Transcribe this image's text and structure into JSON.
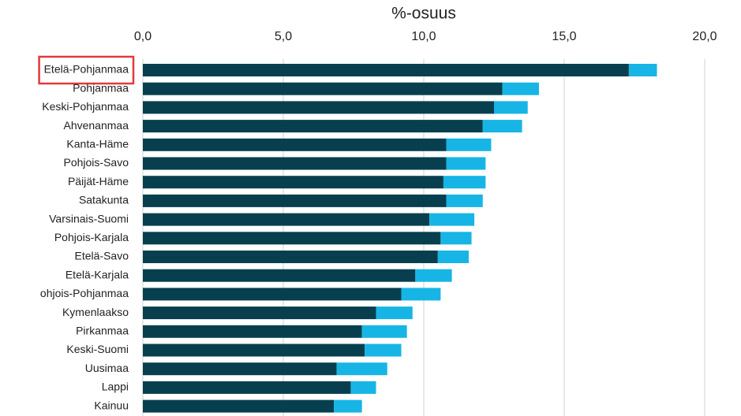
{
  "chart_data": {
    "type": "stacked-barh",
    "title": "%-osuus",
    "categories": [
      "Etelä-Pohjanmaa",
      "Pohjanmaa",
      "Keski-Pohjanmaa",
      "Ahvenanmaa",
      "Kanta-Häme",
      "Pohjois-Savo",
      "Päijät-Häme",
      "Satakunta",
      "Varsinais-Suomi",
      "Pohjois-Karjala",
      "Etelä-Savo",
      "Etelä-Karjala",
      "ohjois-Pohjanmaa",
      "Kymenlaakso",
      "Pirkanmaa",
      "Keski-Suomi",
      "Uusimaa",
      "Lappi",
      "Kainuu"
    ],
    "series": [
      {
        "color": "#083f4f",
        "values": [
          17.3,
          12.8,
          12.5,
          12.1,
          10.8,
          10.8,
          10.7,
          10.8,
          10.2,
          10.6,
          10.5,
          9.7,
          9.2,
          8.3,
          7.8,
          7.9,
          6.9,
          7.4,
          6.8
        ]
      },
      {
        "color": "#17b5e5",
        "values": [
          1.0,
          1.3,
          1.2,
          1.4,
          1.6,
          1.4,
          1.5,
          1.3,
          1.6,
          1.1,
          1.1,
          1.3,
          1.4,
          1.3,
          1.6,
          1.3,
          1.8,
          0.9,
          1.0
        ]
      }
    ],
    "xlim": [
      0,
      20
    ],
    "xticks": [
      {
        "value": 0,
        "label": "0,0"
      },
      {
        "value": 5,
        "label": "5,0"
      },
      {
        "value": 10,
        "label": "10,0"
      },
      {
        "value": 15,
        "label": "15,0"
      },
      {
        "value": 20,
        "label": "20,0"
      }
    ],
    "grid": true
  }
}
